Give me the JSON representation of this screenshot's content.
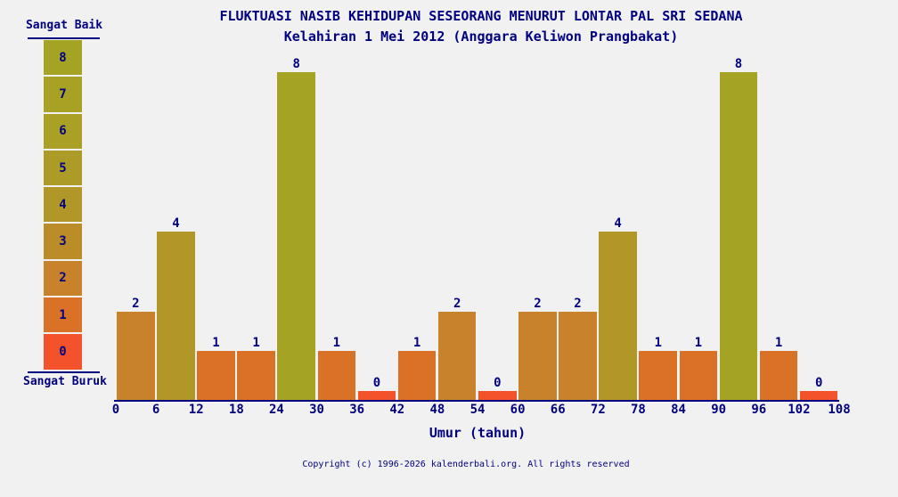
{
  "title": "FLUKTUASI NASIB KEHIDUPAN SESEORANG MENURUT LONTAR PAL SRI SEDANA",
  "subtitle": "Kelahiran 1 Mei 2012 (Anggara Keliwon Prangbakat)",
  "footer": "Copyright (c) 1996-2026 kalenderbali.org. All rights reserved",
  "colors": {
    "text": "#000080",
    "background": "#f1f1f1",
    "axis": "#000080",
    "value_scale": [
      "#f4522a",
      "#d97226",
      "#c8822b",
      "#ba8d29",
      "#b19628",
      "#ac9b26",
      "#a9a025",
      "#a7a224",
      "#a5a323"
    ]
  },
  "legend": {
    "top_label": "Sangat Baik",
    "bottom_label": "Sangat Buruk",
    "cells": [
      8,
      7,
      6,
      5,
      4,
      3,
      2,
      1,
      0
    ]
  },
  "chart_data": {
    "type": "bar",
    "title": "FLUKTUASI NASIB KEHIDUPAN SESEORANG MENURUT LONTAR PAL SRI SEDANA",
    "subtitle": "Kelahiran 1 Mei 2012 (Anggara Keliwon Prangbakat)",
    "xlabel": "Umur (tahun)",
    "ylabel": "",
    "ylim": [
      0,
      8
    ],
    "x_ticks": [
      0,
      6,
      12,
      18,
      24,
      30,
      36,
      42,
      48,
      54,
      60,
      66,
      72,
      78,
      84,
      90,
      96,
      102,
      108
    ],
    "categories": [
      "0-6",
      "6-12",
      "12-18",
      "18-24",
      "24-30",
      "30-36",
      "36-42",
      "42-48",
      "48-54",
      "54-60",
      "60-66",
      "66-72",
      "72-78",
      "78-84",
      "84-90",
      "90-96",
      "96-102",
      "102-108"
    ],
    "values": [
      2,
      4,
      1,
      1,
      8,
      1,
      0,
      1,
      2,
      0,
      2,
      2,
      4,
      1,
      1,
      8,
      1,
      0
    ],
    "legend_scale": {
      "best": "Sangat Baik = 8",
      "worst": "Sangat Buruk = 0"
    },
    "grid": false,
    "bar_value_labels_shown": true
  }
}
